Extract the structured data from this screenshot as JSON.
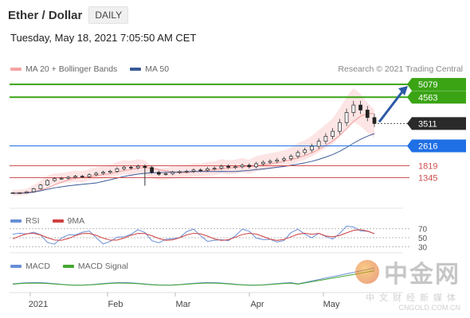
{
  "header": {
    "title": "Ether / Dollar",
    "timeframe": "DAILY",
    "datetime": "Tuesday, May 18, 2021 7:05:50 AM CET"
  },
  "legend": {
    "ma20": "MA 20 + Bollinger Bands",
    "ma50": "MA 50",
    "credit": "Research © 2021 Trading Central"
  },
  "rsi_legend": {
    "rsi": "RSI",
    "ma": "9MA"
  },
  "macd_legend": {
    "macd": "MACD",
    "signal": "MACD Signal"
  },
  "watermark": {
    "brand": "中金网",
    "tagline": "中文财经新媒体",
    "url": "CNGOLD.COM.CN"
  },
  "colors": {
    "bollinger": "#f4a3a3",
    "ma50": "#3b5b98",
    "green_level": "#3aa415",
    "blue_level": "#1f6fe5",
    "red_level": "#d05050",
    "price_dark": "#2a2a2a",
    "forecast_arrow": "#2c5aa6"
  },
  "chart_data": [
    {
      "type": "candlestick",
      "title": "Ether / Dollar",
      "x_labels": [
        "2021",
        "Feb",
        "Mar",
        "Apr",
        "May"
      ],
      "ylim": [
        500,
        5400
      ],
      "current_price": 3511,
      "levels": [
        {
          "value": 5079,
          "kind": "resistance",
          "color": "green"
        },
        {
          "value": 4563,
          "kind": "resistance",
          "color": "green"
        },
        {
          "value": 3511,
          "kind": "last",
          "color": "dark"
        },
        {
          "value": 2616,
          "kind": "pivot",
          "color": "blue"
        },
        {
          "value": 1819,
          "kind": "support",
          "color": "red"
        },
        {
          "value": 1345,
          "kind": "support",
          "color": "red"
        }
      ],
      "series": [
        {
          "name": "MA 20 + Bollinger Bands"
        },
        {
          "name": "MA 50"
        }
      ],
      "close_approx": [
        740,
        740,
        780,
        900,
        1050,
        1230,
        1310,
        1320,
        1360,
        1400,
        1380,
        1460,
        1520,
        1560,
        1600,
        1700,
        1760,
        1740,
        1800,
        1750,
        1560,
        1480,
        1500,
        1560,
        1580,
        1600,
        1650,
        1640,
        1700,
        1720,
        1800,
        1760,
        1780,
        1840,
        1780,
        1900,
        1960,
        2000,
        2050,
        2100,
        2200,
        2350,
        2450,
        2600,
        2800,
        3000,
        3200,
        3550,
        3950,
        4250,
        4050,
        3750,
        3511
      ],
      "forecast_target": 5079
    },
    {
      "type": "line",
      "title": "RSI",
      "series": [
        {
          "name": "RSI"
        },
        {
          "name": "9MA"
        }
      ],
      "levels": [
        70,
        50,
        30
      ]
    },
    {
      "type": "line",
      "title": "MACD",
      "series": [
        {
          "name": "MACD"
        },
        {
          "name": "MACD Signal"
        }
      ]
    }
  ]
}
